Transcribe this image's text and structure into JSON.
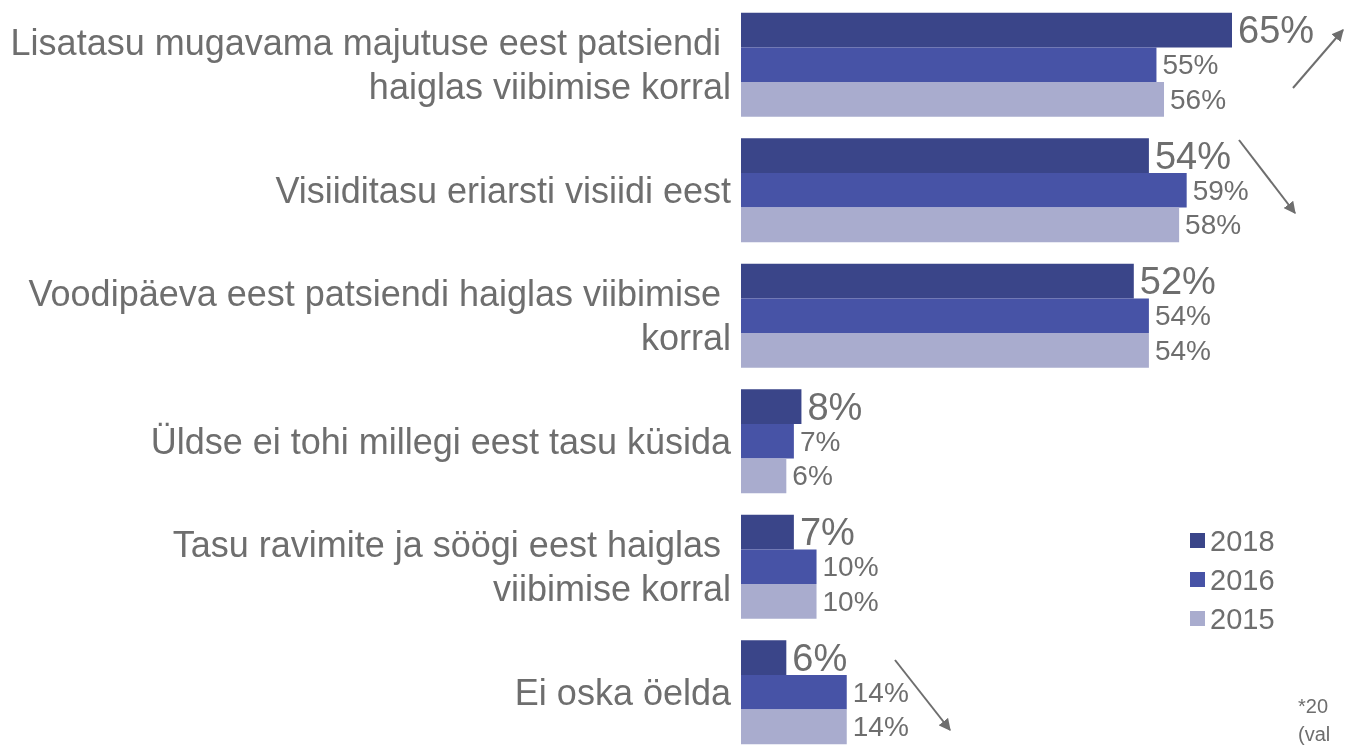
{
  "chart_data": {
    "type": "bar",
    "orientation": "horizontal",
    "categories": [
      "Lisatasu mugavama majutuse eest patsiendi haiglas viibimise korral",
      "Visiiditasu eriarsti visiidi eest",
      "Voodipäeva eest patsiendi haiglas viibimise korral",
      "Üldse ei tohi millegi eest tasu küsida",
      "Tasu ravimite ja söögi eest haiglas viibimise korral",
      "Ei oska öelda"
    ],
    "series": [
      {
        "name": "2018",
        "color": "#3a4589",
        "values": [
          65,
          54,
          52,
          8,
          7,
          6
        ],
        "value_labels": [
          "65%",
          "54%",
          "52%",
          "8%",
          "7%",
          "6%"
        ]
      },
      {
        "name": "2016",
        "color": "#4753a6",
        "values": [
          55,
          59,
          54,
          7,
          10,
          14
        ],
        "value_labels": [
          "55%",
          "59%",
          "54%",
          "7%",
          "10%",
          "14%"
        ]
      },
      {
        "name": "2015",
        "color": "#a9acce",
        "values": [
          56,
          58,
          54,
          6,
          10,
          14
        ],
        "value_labels": [
          "56%",
          "58%",
          "54%",
          "6%",
          "10%",
          "14%"
        ]
      }
    ],
    "annotations": [
      "*20",
      "(val"
    ],
    "legend": "right",
    "tick_labels": "y"
  }
}
